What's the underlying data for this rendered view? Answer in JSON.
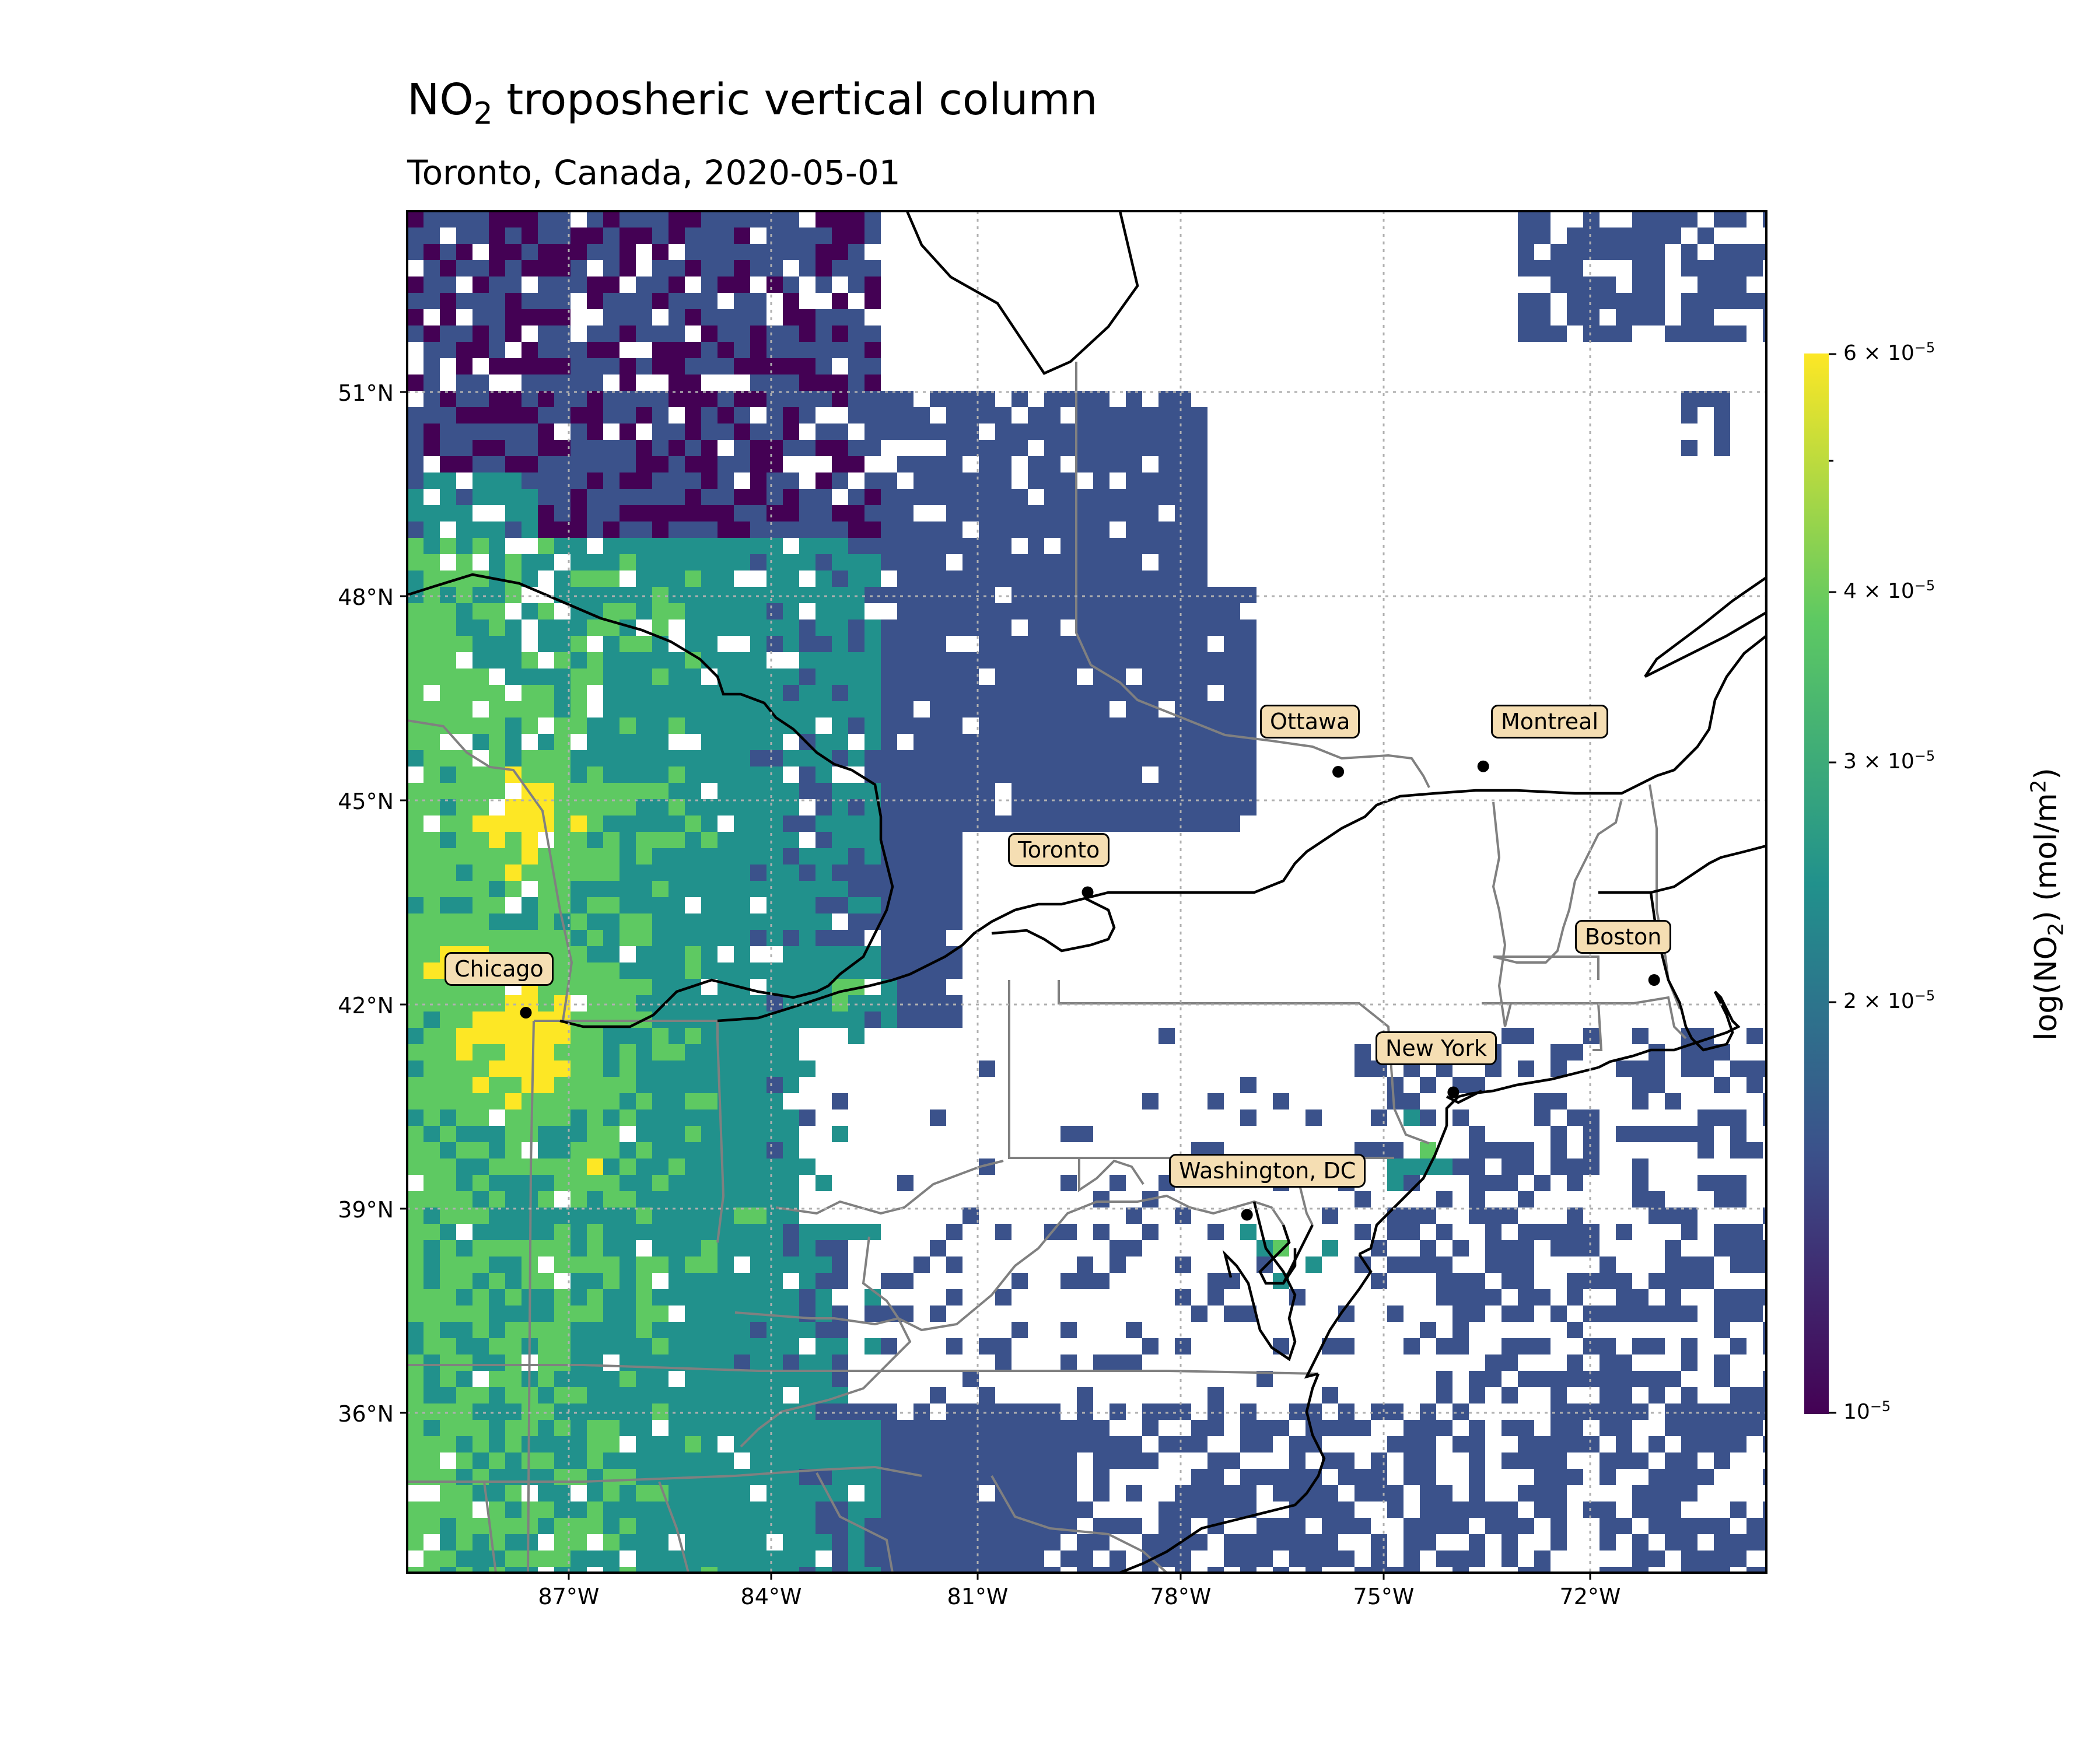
{
  "title": {
    "prefix": "NO",
    "sub": "2",
    "rest": " troposheric vertical column"
  },
  "subtitle": "Toronto, Canada, 2020-05-01",
  "map": {
    "lat_ticks": [
      "51°N",
      "48°N",
      "45°N",
      "42°N",
      "39°N",
      "36°N"
    ],
    "lon_ticks": [
      "87°W",
      "84°W",
      "81°W",
      "78°W",
      "75°W",
      "72°W"
    ],
    "gridlines": true,
    "cities": [
      {
        "name": "Chicago",
        "lat": 41.88,
        "lon": -87.63
      },
      {
        "name": "Toronto",
        "lat": 43.65,
        "lon": -79.38
      },
      {
        "name": "Ottawa",
        "lat": 45.42,
        "lon": -75.7
      },
      {
        "name": "Montreal",
        "lat": 45.5,
        "lon": -73.57
      },
      {
        "name": "Boston",
        "lat": 42.36,
        "lon": -71.06
      },
      {
        "name": "New York",
        "lat": 40.71,
        "lon": -74.01
      },
      {
        "name": "Washington, DC",
        "lat": 38.91,
        "lon": -77.04
      }
    ]
  },
  "colorbar": {
    "scale": "log",
    "range": [
      1e-05,
      6e-05
    ],
    "ticks": [
      {
        "mant": "6 × 10",
        "exp": "−5",
        "value": 6e-05
      },
      {
        "mant": "4 × 10",
        "exp": "−5",
        "value": 4e-05
      },
      {
        "mant": "3 × 10",
        "exp": "−5",
        "value": 3e-05
      },
      {
        "mant": "2 × 10",
        "exp": "−5",
        "value": 2e-05
      },
      {
        "mant": "10",
        "exp": "−5",
        "value": 1e-05
      }
    ],
    "label": {
      "a": "log(NO",
      "b": "2",
      "c": ") (mol/m",
      "d": "2",
      "e": ")"
    },
    "colors": [
      "#440154",
      "#3b528b",
      "#21918c",
      "#5ec962",
      "#fde725"
    ]
  },
  "colors": {
    "missing": "#ffffff",
    "coast": "#000000",
    "state": "#808080",
    "label_bg": "#f5deb3"
  }
}
